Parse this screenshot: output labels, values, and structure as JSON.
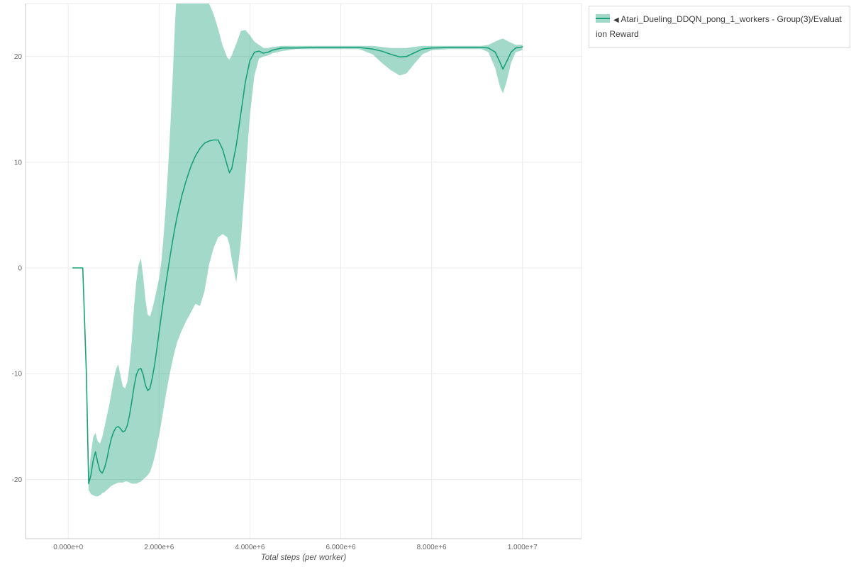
{
  "legend": {
    "marker": "◀",
    "label": "Atari_Dueling_DDQN_pong_1_workers - Group(3)/Evaluation Reward"
  },
  "chart_data": {
    "type": "line",
    "title": "",
    "xlabel": "Total steps (per worker)",
    "ylabel": "",
    "xlim": [
      -940000,
      11300000
    ],
    "ylim": [
      -25.6,
      25.0
    ],
    "grid": true,
    "legend_position": "outside-top-right",
    "x_ticks": [
      {
        "value": 0,
        "label": "0.000e+0"
      },
      {
        "value": 2000000,
        "label": "2.000e+6"
      },
      {
        "value": 4000000,
        "label": "4.000e+6"
      },
      {
        "value": 6000000,
        "label": "6.000e+6"
      },
      {
        "value": 8000000,
        "label": "8.000e+6"
      },
      {
        "value": 10000000,
        "label": "1.000e+7"
      }
    ],
    "y_ticks": [
      {
        "value": -20,
        "label": "-20"
      },
      {
        "value": -10,
        "label": "-10"
      },
      {
        "value": 0,
        "label": "0"
      },
      {
        "value": 10,
        "label": "10"
      },
      {
        "value": 20,
        "label": "20"
      }
    ],
    "series": [
      {
        "name": "Atari_Dueling_DDQN_pong_1_workers - Group(3)/Evaluation Reward",
        "color": "#1aa179",
        "band_opacity": 0.4,
        "x": [
          100000,
          320000,
          400000,
          450000,
          500000,
          550000,
          600000,
          650000,
          700000,
          750000,
          800000,
          850000,
          900000,
          950000,
          1000000,
          1050000,
          1100000,
          1150000,
          1200000,
          1250000,
          1300000,
          1350000,
          1400000,
          1450000,
          1500000,
          1550000,
          1600000,
          1650000,
          1700000,
          1750000,
          1800000,
          1850000,
          1900000,
          1950000,
          2000000,
          2050000,
          2100000,
          2150000,
          2200000,
          2250000,
          2300000,
          2350000,
          2400000,
          2500000,
          2600000,
          2700000,
          2800000,
          2900000,
          3000000,
          3100000,
          3200000,
          3300000,
          3400000,
          3500000,
          3550000,
          3600000,
          3700000,
          3800000,
          3900000,
          4000000,
          4100000,
          4200000,
          4300000,
          4400000,
          4500000,
          4700000,
          5000000,
          5500000,
          6000000,
          6400000,
          6700000,
          6900000,
          7100000,
          7300000,
          7450000,
          7600000,
          7800000,
          8000000,
          8400000,
          8800000,
          9100000,
          9250000,
          9400000,
          9500000,
          9570000,
          9650000,
          9750000,
          9850000,
          10000000
        ],
        "mean": [
          0,
          0,
          -10,
          -20.4,
          -19.6,
          -18.2,
          -17.4,
          -18.4,
          -19.2,
          -19.4,
          -18.9,
          -18.1,
          -17.0,
          -16.1,
          -15.5,
          -15.1,
          -15.0,
          -15.2,
          -15.5,
          -15.4,
          -14.9,
          -13.9,
          -12.6,
          -11.2,
          -10.1,
          -9.6,
          -9.5,
          -10.1,
          -11.1,
          -11.6,
          -11.4,
          -10.4,
          -9.2,
          -7.7,
          -6.1,
          -4.5,
          -3.0,
          -1.5,
          -0.1,
          1.3,
          2.6,
          3.8,
          4.9,
          6.8,
          8.3,
          9.6,
          10.6,
          11.3,
          11.8,
          12.0,
          12.1,
          12.1,
          11.2,
          9.7,
          9.0,
          9.4,
          11.6,
          14.6,
          17.6,
          19.6,
          20.4,
          20.5,
          20.3,
          20.4,
          20.6,
          20.8,
          20.8,
          20.85,
          20.85,
          20.85,
          20.7,
          20.5,
          20.2,
          19.95,
          20.0,
          20.3,
          20.7,
          20.8,
          20.85,
          20.85,
          20.85,
          20.8,
          20.4,
          19.5,
          18.8,
          19.5,
          20.4,
          20.8,
          20.9
        ],
        "lo": [
          0,
          0,
          -11,
          -21.0,
          -21.4,
          -21.5,
          -21.6,
          -21.6,
          -21.5,
          -21.3,
          -21.2,
          -21.0,
          -20.8,
          -20.6,
          -20.5,
          -20.4,
          -20.3,
          -20.3,
          -20.3,
          -20.2,
          -20.2,
          -20.3,
          -20.4,
          -20.4,
          -20.4,
          -20.3,
          -20.2,
          -20.0,
          -19.8,
          -19.6,
          -19.3,
          -18.7,
          -17.9,
          -16.9,
          -15.8,
          -14.6,
          -13.3,
          -12.0,
          -10.8,
          -9.7,
          -8.7,
          -7.8,
          -7.0,
          -5.9,
          -5.0,
          -4.2,
          -3.4,
          -3.6,
          -2.2,
          0.3,
          1.9,
          2.9,
          3.2,
          2.9,
          2.2,
          0.8,
          -1.4,
          2.5,
          8.5,
          14.5,
          18.2,
          19.8,
          20.0,
          20.1,
          20.3,
          20.5,
          20.7,
          20.7,
          20.7,
          20.7,
          20.2,
          19.4,
          18.7,
          18.2,
          18.4,
          19.2,
          20.2,
          20.6,
          20.7,
          20.7,
          20.7,
          20.4,
          18.9,
          17.2,
          16.5,
          17.6,
          19.4,
          20.4,
          20.6
        ],
        "hi": [
          0,
          0,
          -9,
          -19.6,
          -17.6,
          -16.0,
          -15.6,
          -16.4,
          -16.6,
          -16.0,
          -15.0,
          -14.0,
          -13.0,
          -11.8,
          -10.6,
          -9.6,
          -9.1,
          -10.2,
          -11.2,
          -11.4,
          -10.8,
          -9.2,
          -6.8,
          -3.6,
          -1.2,
          0.3,
          0.9,
          -0.8,
          -3.0,
          -4.4,
          -4.6,
          -3.9,
          -3.0,
          -2.0,
          -1.0,
          0.6,
          3.0,
          6.0,
          9.5,
          13.5,
          18.0,
          23.0,
          27.0,
          29.0,
          29.5,
          29.0,
          28.0,
          27.0,
          26.0,
          25.0,
          24.0,
          22.6,
          21.0,
          19.9,
          19.7,
          20.1,
          21.2,
          22.4,
          22.5,
          22.0,
          21.4,
          21.1,
          20.8,
          20.8,
          20.9,
          21.0,
          21.0,
          21.0,
          21.0,
          21.0,
          21.0,
          20.9,
          20.8,
          20.8,
          20.8,
          20.9,
          21.0,
          21.0,
          21.0,
          21.0,
          21.0,
          21.1,
          21.4,
          21.6,
          21.7,
          21.5,
          21.3,
          21.1,
          21.1
        ]
      }
    ]
  }
}
